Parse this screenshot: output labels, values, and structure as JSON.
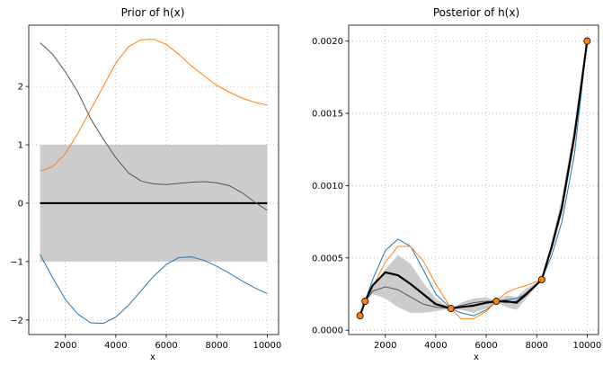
{
  "chart_data": [
    {
      "type": "line",
      "title": "Prior of h(x)",
      "xlabel": "x",
      "ylabel": "",
      "xlim": [
        550,
        10450
      ],
      "ylim": [
        -2.25,
        3.05
      ],
      "xticks": [
        2000,
        4000,
        6000,
        8000,
        10000
      ],
      "yticks": [
        -2,
        -1,
        0,
        1,
        2
      ],
      "grid": true,
      "band": {
        "x": [
          1000,
          10000
        ],
        "lower": -1,
        "upper": 1,
        "color": "#cccccc"
      },
      "series": [
        {
          "color": "#000000",
          "role": "mean",
          "x": [
            1000,
            10000
          ],
          "y": [
            0,
            0
          ]
        },
        {
          "color": "#ff7f0e",
          "role": "sample",
          "x": [
            1000,
            1500,
            2000,
            2500,
            3000,
            3500,
            4000,
            4500,
            5000,
            5500,
            6000,
            6500,
            7000,
            7500,
            8000,
            8500,
            9000,
            9500,
            10000
          ],
          "y": [
            0.55,
            0.63,
            0.85,
            1.2,
            1.6,
            2.0,
            2.4,
            2.68,
            2.8,
            2.81,
            2.72,
            2.55,
            2.35,
            2.18,
            2.02,
            1.9,
            1.8,
            1.73,
            1.68
          ]
        },
        {
          "color": "#555555",
          "role": "sample",
          "x": [
            1000,
            1500,
            2000,
            2500,
            3000,
            3500,
            4000,
            4500,
            5000,
            5500,
            6000,
            6500,
            7000,
            7500,
            8000,
            8500,
            9000,
            9500,
            10000
          ],
          "y": [
            2.75,
            2.55,
            2.25,
            1.9,
            1.45,
            1.1,
            0.78,
            0.52,
            0.38,
            0.33,
            0.32,
            0.34,
            0.36,
            0.37,
            0.35,
            0.3,
            0.18,
            0.02,
            -0.12
          ]
        },
        {
          "color": "#1f77b4",
          "role": "sample",
          "x": [
            1000,
            1500,
            2000,
            2500,
            3000,
            3500,
            4000,
            4500,
            5000,
            5500,
            6000,
            6500,
            7000,
            7500,
            8000,
            8500,
            9000,
            9500,
            10000
          ],
          "y": [
            -0.88,
            -1.28,
            -1.65,
            -1.9,
            -2.05,
            -2.06,
            -1.95,
            -1.75,
            -1.5,
            -1.25,
            -1.05,
            -0.93,
            -0.92,
            -0.98,
            -1.08,
            -1.2,
            -1.33,
            -1.45,
            -1.55
          ]
        }
      ]
    },
    {
      "type": "line",
      "title": "Posterior of h(x)",
      "xlabel": "x",
      "ylabel": "",
      "xlim": [
        550,
        10450
      ],
      "ylim": [
        -3e-05,
        0.00211
      ],
      "xticks": [
        2000,
        4000,
        6000,
        8000,
        10000
      ],
      "xtick_labels": [
        "2000",
        "4000",
        "6000",
        "8000",
        "10000"
      ],
      "yticks": [
        0.0,
        0.0005,
        0.001,
        0.0015,
        0.002
      ],
      "ytick_labels": [
        "0.0000",
        "0.0005",
        "0.0010",
        "0.0015",
        "0.0020"
      ],
      "grid": true,
      "band": {
        "color": "#cccccc",
        "x": [
          1000,
          1200,
          1500,
          2000,
          2500,
          3000,
          3500,
          4000,
          4600,
          5000,
          5500,
          6000,
          6400,
          6800,
          7200,
          7600,
          8200,
          8600,
          9000,
          9500,
          10000
        ],
        "lower": [
          0.0001,
          0.0002,
          0.00025,
          0.00022,
          0.00016,
          0.00012,
          0.00012,
          0.00013,
          0.00015,
          0.00014,
          0.00012,
          0.00015,
          0.0002,
          0.00016,
          0.00014,
          0.00022,
          0.00035,
          0.00055,
          0.0008,
          0.00128,
          0.002
        ],
        "upper": [
          0.0001,
          0.0002,
          0.0003,
          0.00042,
          0.00052,
          0.00046,
          0.00033,
          0.00022,
          0.00015,
          0.00019,
          0.00022,
          0.00023,
          0.0002,
          0.00024,
          0.00023,
          0.00029,
          0.00035,
          0.00062,
          0.00092,
          0.00142,
          0.002
        ]
      },
      "series": [
        {
          "color": "#1f77b4",
          "role": "sample",
          "x": [
            1000,
            1200,
            1500,
            2000,
            2500,
            3000,
            3500,
            4000,
            4600,
            5000,
            5500,
            6000,
            6400,
            6800,
            7200,
            7600,
            8200,
            8600,
            9000,
            9500,
            10000
          ],
          "y": [
            0.0001,
            0.0002,
            0.00035,
            0.00055,
            0.00063,
            0.00058,
            0.00042,
            0.00025,
            0.00015,
            0.00012,
            0.0001,
            0.00014,
            0.0002,
            0.00021,
            0.00022,
            0.00025,
            0.00035,
            0.00052,
            0.00075,
            0.00122,
            0.002
          ]
        },
        {
          "color": "#ff7f0e",
          "role": "sample",
          "x": [
            1000,
            1200,
            1500,
            2000,
            2500,
            3000,
            3500,
            4000,
            4600,
            5000,
            5500,
            6000,
            6400,
            6800,
            7200,
            7600,
            8200,
            8600,
            9000,
            9500,
            10000
          ],
          "y": [
            0.0001,
            0.0002,
            0.0003,
            0.00047,
            0.00058,
            0.00058,
            0.00048,
            0.00032,
            0.00015,
            8e-05,
            8e-05,
            0.00013,
            0.0002,
            0.00026,
            0.00029,
            0.00031,
            0.00035,
            0.00058,
            0.00085,
            0.00138,
            0.002
          ]
        },
        {
          "color": "#555555",
          "role": "sample",
          "x": [
            1000,
            1200,
            1500,
            2000,
            2500,
            3000,
            3500,
            4000,
            4600,
            5000,
            5500,
            6000,
            6400,
            6800,
            7200,
            7600,
            8200,
            8600,
            9000,
            9500,
            10000
          ],
          "y": [
            0.0001,
            0.0002,
            0.00027,
            0.0003,
            0.00028,
            0.00023,
            0.00018,
            0.00016,
            0.00015,
            0.00017,
            0.00019,
            0.0002,
            0.0002,
            0.00019,
            0.0002,
            0.00026,
            0.00035,
            0.00057,
            0.00083,
            0.00133,
            0.002
          ]
        },
        {
          "color": "#000000",
          "role": "mean",
          "x": [
            1000,
            1200,
            1500,
            2000,
            2500,
            3000,
            3500,
            4000,
            4600,
            5000,
            5500,
            6000,
            6400,
            6800,
            7200,
            7600,
            8200,
            8600,
            9000,
            9500,
            10000
          ],
          "y": [
            0.0001,
            0.0002,
            0.00031,
            0.0004,
            0.00038,
            0.00032,
            0.00025,
            0.00018,
            0.00015,
            0.00016,
            0.00017,
            0.00019,
            0.0002,
            0.0002,
            0.00019,
            0.00025,
            0.00035,
            0.00058,
            0.00085,
            0.00135,
            0.002
          ]
        }
      ],
      "observations": {
        "color": "#ff7f0e",
        "edgecolor": "#000000",
        "x": [
          1000,
          1200,
          4600,
          6400,
          8200,
          10000
        ],
        "y": [
          0.0001,
          0.0002,
          0.00015,
          0.0002,
          0.00035,
          0.002
        ]
      }
    }
  ]
}
